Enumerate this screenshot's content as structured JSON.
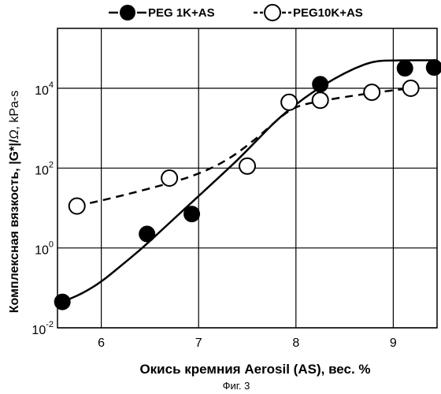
{
  "chart_data": {
    "type": "scatter",
    "title": "",
    "xlabel": "Окись кремния Aerosil (AS), вес. %",
    "ylabel_main": "Комплексная вязкость, |G*|/",
    "ylabel_symbol": "Ω",
    "ylabel_unit": ", kPa-s",
    "caption": "Фиг. 3",
    "xlim": [
      5.55,
      9.45
    ],
    "ylim_log10": [
      -2,
      5.5
    ],
    "y_scale": "log",
    "grid": true,
    "x_ticks": [
      "6",
      "7",
      "8",
      "9"
    ],
    "x_tick_values": [
      6,
      7,
      8,
      9
    ],
    "y_ticks": [
      {
        "base": "10",
        "exp": "-2",
        "value": -2
      },
      {
        "base": "10",
        "exp": "0",
        "value": 0
      },
      {
        "base": "10",
        "exp": "2",
        "value": 2
      },
      {
        "base": "10",
        "exp": "4",
        "value": 4
      }
    ],
    "legend_position": "top",
    "series": [
      {
        "name": "PEG 1K+AS",
        "marker": "filled-circle",
        "line": "solid",
        "color": "#000000",
        "points": [
          {
            "x": 5.6,
            "y_log10": -1.35
          },
          {
            "x": 6.47,
            "y_log10": 0.35
          },
          {
            "x": 6.93,
            "y_log10": 0.85
          },
          {
            "x": 8.25,
            "y_log10": 4.1
          },
          {
            "x": 9.12,
            "y_log10": 4.5
          },
          {
            "x": 9.42,
            "y_log10": 4.52
          }
        ],
        "fit_curve": [
          {
            "x": 5.6,
            "y_log10": -1.35
          },
          {
            "x": 5.8,
            "y_log10": -1.15
          },
          {
            "x": 6.0,
            "y_log10": -0.85
          },
          {
            "x": 6.2,
            "y_log10": -0.45
          },
          {
            "x": 6.4,
            "y_log10": -0.05
          },
          {
            "x": 6.6,
            "y_log10": 0.4
          },
          {
            "x": 6.8,
            "y_log10": 0.85
          },
          {
            "x": 7.0,
            "y_log10": 1.3
          },
          {
            "x": 7.2,
            "y_log10": 1.75
          },
          {
            "x": 7.4,
            "y_log10": 2.2
          },
          {
            "x": 7.6,
            "y_log10": 2.7
          },
          {
            "x": 7.8,
            "y_log10": 3.2
          },
          {
            "x": 8.0,
            "y_log10": 3.6
          },
          {
            "x": 8.2,
            "y_log10": 3.95
          },
          {
            "x": 8.4,
            "y_log10": 4.25
          },
          {
            "x": 8.6,
            "y_log10": 4.5
          },
          {
            "x": 8.8,
            "y_log10": 4.68
          },
          {
            "x": 9.0,
            "y_log10": 4.7
          },
          {
            "x": 9.45,
            "y_log10": 4.7
          }
        ]
      },
      {
        "name": "PEG10K+AS",
        "marker": "open-circle",
        "line": "dashed",
        "color": "#000000",
        "points": [
          {
            "x": 5.75,
            "y_log10": 1.05
          },
          {
            "x": 6.7,
            "y_log10": 1.75
          },
          {
            "x": 7.5,
            "y_log10": 2.05
          },
          {
            "x": 7.93,
            "y_log10": 3.65
          },
          {
            "x": 8.25,
            "y_log10": 3.7
          },
          {
            "x": 8.78,
            "y_log10": 3.9
          },
          {
            "x": 9.18,
            "y_log10": 4.0
          }
        ],
        "fit_curve": [
          {
            "x": 5.75,
            "y_log10": 1.05
          },
          {
            "x": 6.2,
            "y_log10": 1.3
          },
          {
            "x": 6.7,
            "y_log10": 1.62
          },
          {
            "x": 7.0,
            "y_log10": 1.85
          },
          {
            "x": 7.3,
            "y_log10": 2.2
          },
          {
            "x": 7.6,
            "y_log10": 2.75
          },
          {
            "x": 7.85,
            "y_log10": 3.3
          },
          {
            "x": 8.0,
            "y_log10": 3.55
          },
          {
            "x": 8.25,
            "y_log10": 3.68
          },
          {
            "x": 8.6,
            "y_log10": 3.82
          },
          {
            "x": 8.9,
            "y_log10": 3.92
          },
          {
            "x": 9.18,
            "y_log10": 4.0
          }
        ]
      }
    ]
  }
}
